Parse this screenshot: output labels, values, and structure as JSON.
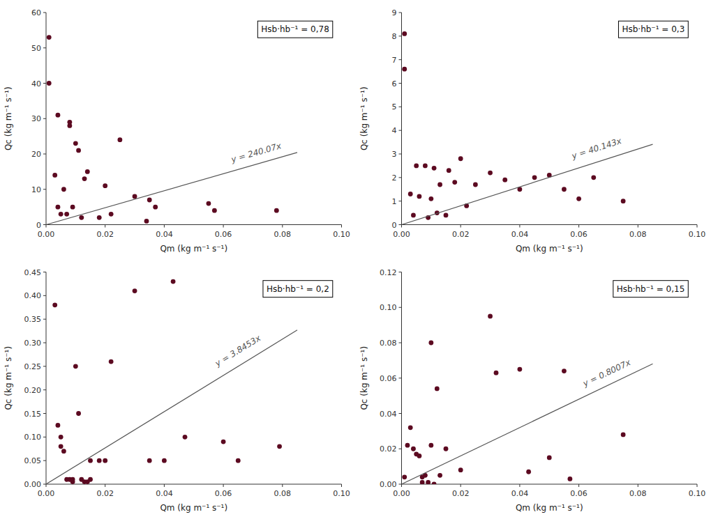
{
  "chart_data": [
    {
      "type": "scatter",
      "xlabel": "Qm (kg m⁻¹ s⁻¹)",
      "ylabel": "Qc (kg m⁻¹ s⁻¹)",
      "xlim": [
        0,
        0.1
      ],
      "ylim": [
        0,
        60
      ],
      "xticks": [
        {
          "value": 0,
          "label": "0.00"
        },
        0.02,
        0.04,
        0.06,
        0.08,
        {
          "value": 0.1,
          "label": "0.10"
        }
      ],
      "yticks": [
        0,
        10,
        20,
        30,
        40,
        50,
        60
      ],
      "grid": false,
      "series": [
        {
          "type": "scatter",
          "color": "#5c0a21",
          "x": [
            0.001,
            0.001,
            0.003,
            0.004,
            0.004,
            0.005,
            0.006,
            0.007,
            0.008,
            0.008,
            0.009,
            0.01,
            0.011,
            0.012,
            0.013,
            0.014,
            0.018,
            0.02,
            0.022,
            0.025,
            0.03,
            0.034,
            0.035,
            0.037,
            0.055,
            0.057,
            0.078
          ],
          "values": [
            53,
            40,
            14,
            5,
            31,
            3,
            10,
            3,
            28,
            29,
            5,
            23,
            21,
            2,
            13,
            15,
            2,
            11,
            3,
            24,
            8,
            1,
            7,
            5,
            6,
            4,
            4
          ]
        },
        {
          "type": "line",
          "color": "#555555",
          "x": [
            0.0,
            0.085
          ],
          "values": [
            0,
            20.40595
          ]
        }
      ],
      "annotations": [
        {
          "text": "y = 240.07x",
          "x": 0.063,
          "y": 17
        },
        {
          "text": "Hsb·hb⁻¹ = 0,78"
        }
      ]
    },
    {
      "type": "scatter",
      "xlabel": "Qm (kg m⁻¹ s⁻¹)",
      "ylabel": "Qc (kg m⁻¹ s⁻¹)",
      "xlim": [
        0,
        0.1
      ],
      "ylim": [
        0,
        9
      ],
      "xticks": [
        {
          "value": 0,
          "label": "0.00"
        },
        0.02,
        0.04,
        0.06,
        0.08,
        {
          "value": 0.1,
          "label": "0.10"
        }
      ],
      "yticks": [
        0,
        1,
        2,
        3,
        4,
        5,
        6,
        7,
        8,
        9
      ],
      "grid": false,
      "series": [
        {
          "type": "scatter",
          "color": "#5c0a21",
          "x": [
            0.001,
            0.001,
            0.003,
            0.004,
            0.005,
            0.006,
            0.008,
            0.009,
            0.01,
            0.011,
            0.012,
            0.013,
            0.015,
            0.016,
            0.018,
            0.02,
            0.022,
            0.025,
            0.03,
            0.035,
            0.04,
            0.045,
            0.05,
            0.055,
            0.06,
            0.065,
            0.075
          ],
          "values": [
            8.1,
            6.6,
            1.3,
            0.4,
            2.5,
            1.2,
            2.5,
            0.3,
            1.1,
            2.4,
            0.5,
            1.7,
            0.4,
            2.3,
            1.8,
            2.8,
            0.8,
            1.7,
            2.2,
            1.9,
            1.5,
            2.0,
            2.1,
            1.5,
            1.1,
            2.0,
            1.0
          ]
        },
        {
          "type": "line",
          "color": "#555555",
          "x": [
            0.0,
            0.085
          ],
          "values": [
            0,
            3.412155
          ]
        }
      ],
      "annotations": [
        {
          "text": "y = 40.143x",
          "x": 0.058,
          "y": 2.7
        },
        {
          "text": "Hsb·hb⁻¹ = 0,3"
        }
      ]
    },
    {
      "type": "scatter",
      "xlabel": "Qm (kg m⁻¹ s⁻¹)",
      "ylabel": "Qc (kg m⁻¹ s⁻¹)",
      "xlim": [
        0,
        0.1
      ],
      "ylim": [
        0,
        0.45
      ],
      "xticks": [
        {
          "value": 0,
          "label": "0.00"
        },
        0.02,
        0.04,
        0.06,
        0.08,
        {
          "value": 0.1,
          "label": "0.10"
        }
      ],
      "yticks": [
        {
          "value": 0,
          "label": "0.00"
        },
        0.05,
        {
          "value": 0.1,
          "label": "0.10"
        },
        0.15,
        {
          "value": 0.2,
          "label": "0.20"
        },
        0.25,
        {
          "value": 0.3,
          "label": "0.30"
        },
        0.35,
        {
          "value": 0.4,
          "label": "0.40"
        },
        0.45
      ],
      "grid": false,
      "series": [
        {
          "type": "scatter",
          "color": "#5c0a21",
          "x": [
            0.003,
            0.004,
            0.005,
            0.005,
            0.006,
            0.007,
            0.008,
            0.009,
            0.009,
            0.01,
            0.011,
            0.012,
            0.013,
            0.014,
            0.015,
            0.015,
            0.018,
            0.02,
            0.022,
            0.03,
            0.035,
            0.04,
            0.043,
            0.047,
            0.06,
            0.065,
            0.079
          ],
          "values": [
            0.38,
            0.125,
            0.1,
            0.08,
            0.07,
            0.01,
            0.01,
            0.005,
            0.01,
            0.25,
            0.15,
            0.01,
            0.005,
            0.005,
            0.05,
            0.01,
            0.05,
            0.05,
            0.26,
            0.41,
            0.05,
            0.05,
            0.43,
            0.1,
            0.09,
            0.05,
            0.08
          ]
        },
        {
          "type": "line",
          "color": "#555555",
          "x": [
            0.0,
            0.085
          ],
          "values": [
            0,
            0.3268505
          ]
        }
      ],
      "annotations": [
        {
          "text": "y = 3.8453x",
          "x": 0.058,
          "y": 0.245
        },
        {
          "text": "Hsb·hb⁻¹ = 0,2"
        }
      ]
    },
    {
      "type": "scatter",
      "xlabel": "Qm (kg m⁻¹ s⁻¹)",
      "ylabel": "Qc (kg m⁻¹ s⁻¹)",
      "xlim": [
        0,
        0.1
      ],
      "ylim": [
        0,
        0.12
      ],
      "xticks": [
        {
          "value": 0,
          "label": "0.00"
        },
        0.02,
        0.04,
        0.06,
        0.08,
        {
          "value": 0.1,
          "label": "0.10"
        }
      ],
      "yticks": [
        {
          "value": 0,
          "label": "0.00"
        },
        0.02,
        0.04,
        0.06,
        0.08,
        {
          "value": 0.1,
          "label": "0.10"
        },
        0.12
      ],
      "grid": false,
      "series": [
        {
          "type": "scatter",
          "color": "#5c0a21",
          "x": [
            0.001,
            0.002,
            0.003,
            0.004,
            0.005,
            0.006,
            0.007,
            0.007,
            0.008,
            0.009,
            0.01,
            0.01,
            0.011,
            0.012,
            0.013,
            0.015,
            0.02,
            0.03,
            0.032,
            0.04,
            0.043,
            0.05,
            0.055,
            0.057,
            0.075
          ],
          "values": [
            0.004,
            0.022,
            0.032,
            0.02,
            0.017,
            0.016,
            0.001,
            0.004,
            0.005,
            0.001,
            0.08,
            0.022,
            0.0,
            0.054,
            0.005,
            0.02,
            0.008,
            0.095,
            0.063,
            0.065,
            0.007,
            0.015,
            0.064,
            0.003,
            0.028
          ]
        },
        {
          "type": "line",
          "color": "#555555",
          "x": [
            0.0,
            0.085
          ],
          "values": [
            0,
            0.0680595
          ]
        }
      ],
      "annotations": [
        {
          "text": "y = 0.8007x",
          "x": 0.062,
          "y": 0.054
        },
        {
          "text": "Hsb·hb⁻¹ = 0,15"
        }
      ]
    }
  ]
}
